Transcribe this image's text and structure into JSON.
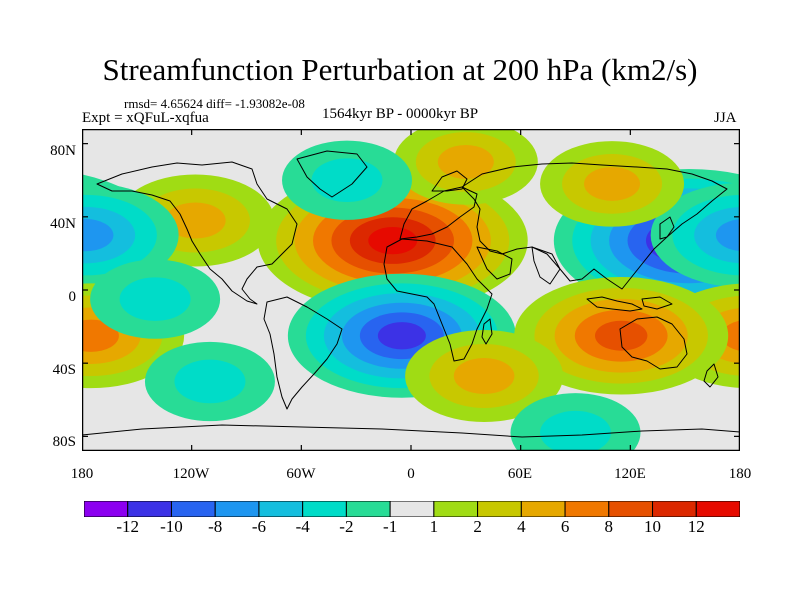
{
  "figure": {
    "title": "Streamfunction Perturbation at 200 hPa (km2/s)",
    "stats_line": "rmsd= 4.65624 diff= -1.93082e-08",
    "experiment": "Expt = xQFuL-xqfua",
    "period": "1564kyr BP - 0000kyr BP",
    "season": "JJA"
  },
  "chart_data": {
    "type": "heatmap",
    "title": "Streamfunction Perturbation at 200 hPa (km2/s)",
    "x_axis": {
      "range": [
        -180,
        180
      ],
      "ticks": [
        -180,
        -120,
        -60,
        0,
        60,
        120,
        180
      ],
      "tick_labels": [
        "180",
        "120W",
        "60W",
        "0",
        "60E",
        "120E",
        "180"
      ]
    },
    "y_axis": {
      "range": [
        -88,
        88
      ],
      "ticks": [
        80,
        40,
        0,
        -40,
        -80
      ],
      "tick_labels": [
        "80N",
        "40N",
        "0",
        "40S",
        "80S"
      ]
    },
    "colorbar": {
      "labels": [
        "-12",
        "-10",
        "-8",
        "-6",
        "-4",
        "-2",
        "-1",
        "1",
        "2",
        "4",
        "6",
        "8",
        "10",
        "12"
      ],
      "colors": [
        "#8c00f0",
        "#3c32e6",
        "#2864f0",
        "#1e96f0",
        "#14bede",
        "#00dcc8",
        "#28dc96",
        "#e6e6e6",
        "#a0dc14",
        "#c8c800",
        "#e6a800",
        "#f07800",
        "#e65000",
        "#dc2800",
        "#e60a00"
      ]
    },
    "features": [
      {
        "name": "north-africa-high",
        "lon": -10,
        "lat": 27,
        "value": 13
      },
      {
        "name": "north-america-high",
        "lon": -118,
        "lat": 38,
        "value": 5
      },
      {
        "name": "east-asia-low",
        "lon": 152,
        "lat": 27,
        "value": -13
      },
      {
        "name": "north-pacific-low",
        "lon": -178,
        "lat": 30,
        "value": -7
      },
      {
        "name": "south-atlantic-low",
        "lon": -5,
        "lat": -25,
        "value": -10
      },
      {
        "name": "south-pacific-high",
        "lon": -175,
        "lat": -25,
        "value": 7
      },
      {
        "name": "australia-high",
        "lon": 115,
        "lat": -25,
        "value": 9
      },
      {
        "name": "south-indian-high",
        "lon": 40,
        "lat": -47,
        "value": 5
      },
      {
        "name": "arctic-europe-high",
        "lon": 30,
        "lat": 70,
        "value": 4
      },
      {
        "name": "north-asia-high",
        "lon": 110,
        "lat": 58,
        "value": 4
      },
      {
        "name": "atlantic-low",
        "lon": -35,
        "lat": 60,
        "value": -3
      },
      {
        "name": "eastern-pacific-low",
        "lon": -140,
        "lat": -5,
        "value": -3
      },
      {
        "name": "south-pacific-low",
        "lon": -110,
        "lat": -50,
        "value": -3
      },
      {
        "name": "southern-ocean-low",
        "lon": 90,
        "lat": -78,
        "value": -3
      }
    ]
  }
}
